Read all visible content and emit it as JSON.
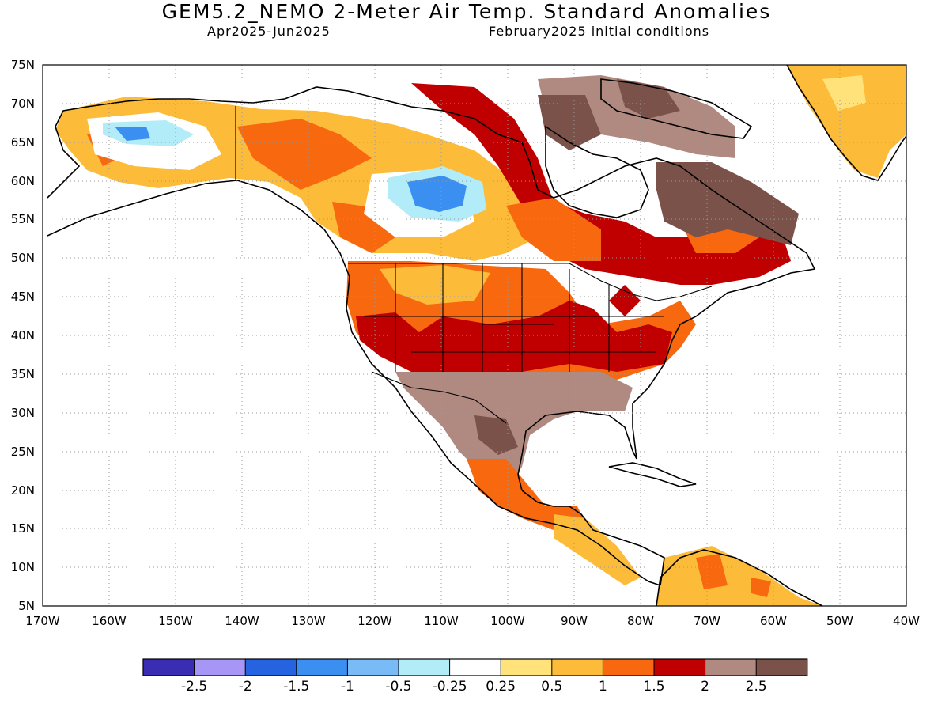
{
  "header": {
    "title": "GEM5.2_NEMO 2-Meter Air Temp. Standard Anomalies",
    "period": "Apr2025-Jun2025",
    "init": "February2025 initial conditions"
  },
  "map": {
    "lon_range": [
      -170,
      -40
    ],
    "lat_range": [
      5,
      75
    ],
    "lat_labels": [
      "75N",
      "70N",
      "65N",
      "60N",
      "55N",
      "50N",
      "45N",
      "40N",
      "35N",
      "30N",
      "25N",
      "20N",
      "15N",
      "10N",
      "5N"
    ],
    "lon_labels": [
      "170W",
      "160W",
      "150W",
      "140W",
      "130W",
      "120W",
      "110W",
      "100W",
      "90W",
      "80W",
      "70W",
      "60W",
      "50W",
      "40W"
    ],
    "grid": "dotted",
    "coastline_color": "#000000"
  },
  "colorbar": {
    "colors": [
      "#3a2db4",
      "#a796f5",
      "#2563e0",
      "#3b8ff0",
      "#78bbf6",
      "#b1ecf8",
      "#ffffff",
      "#ffe27a",
      "#fcbc3a",
      "#f7680f",
      "#c00000",
      "#b08a80",
      "#7b524a"
    ],
    "labels": [
      "-2.5",
      "-2",
      "-1.5",
      "-1",
      "-0.5",
      "-0.25",
      "0.25",
      "0.5",
      "1",
      "1.5",
      "2",
      "2.5"
    ]
  },
  "anomaly_regions": [
    {
      "category": "1 to 1.5",
      "color": "#f7680f",
      "area": "western and central United States, Alaska"
    },
    {
      "category": "1.5 to 2",
      "color": "#c00000",
      "area": "eastern United States, Hudson Bay region"
    },
    {
      "category": "2 to 2.5",
      "color": "#b08a80",
      "area": "Texas, northern Mexico, Gulf coast"
    },
    {
      "category": "> 2.5",
      "color": "#7b524a",
      "area": "northern Mexico, Labrador, Baffin Island"
    },
    {
      "category": "-1.5 to -1",
      "color": "#3b8ff0",
      "area": "northern Saskatchewan, Alaska interior"
    },
    {
      "category": "0.5 to 1",
      "color": "#fcbc3a",
      "area": "Greenland, northern South America, western Canada"
    }
  ]
}
